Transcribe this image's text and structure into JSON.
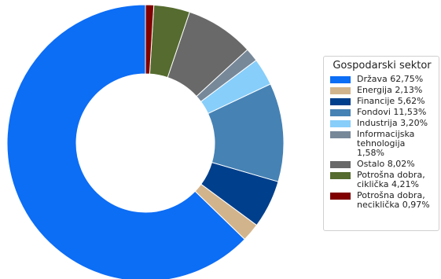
{
  "chart_data": {
    "type": "pie",
    "variant": "donut",
    "legend_title": "Gospodarski sektor",
    "legend_position": "right",
    "slices": [
      {
        "label": "Država 62,75%",
        "value": 62.75,
        "color": "#0c6df5"
      },
      {
        "label": "Energija 2,13%",
        "value": 2.13,
        "color": "#d2b48c"
      },
      {
        "label": "Financije 5,62%",
        "value": 5.62,
        "color": "#003f8c"
      },
      {
        "label": "Fondovi 11,53%",
        "value": 11.53,
        "color": "#4682b4"
      },
      {
        "label": "Industrija 3,20%",
        "value": 3.2,
        "color": "#87cefa"
      },
      {
        "label": "Informacijska\ntehnologija 1,58%",
        "value": 1.58,
        "color": "#778899"
      },
      {
        "label": "Ostalo 8,02%",
        "value": 8.02,
        "color": "#696969"
      },
      {
        "label": "Potrošna dobra,\nciklička 4,21%",
        "value": 4.21,
        "color": "#556b2f"
      },
      {
        "label": "Potrošna dobra,\nneciklička 0,97%",
        "value": 0.97,
        "color": "#800000"
      }
    ]
  }
}
